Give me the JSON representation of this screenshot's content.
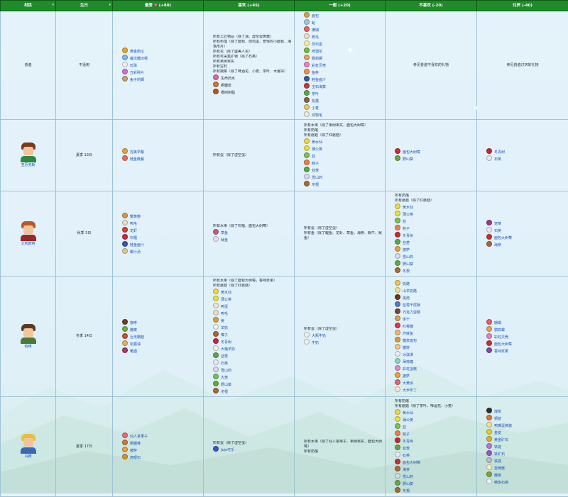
{
  "headers": {
    "villager": "村民",
    "birthday": "生日",
    "love": "最爱",
    "love_pts": "(+80)",
    "like": "喜欢 (+45)",
    "neutral": "一般 (+20)",
    "dislike": "不喜欢 (-20)",
    "hate": "讨厌 (-40)"
  },
  "colors": {
    "header_bg": "#1f8b2a",
    "link": "#1a55b8",
    "border": "#9ec3d8"
  },
  "rows": [
    {
      "name": "普遍",
      "birthday": "不适用",
      "love": [
        {
          "t": "黄金南瓜",
          "c": "#e8a626"
        },
        {
          "t": "魔法糖冰棍",
          "c": "#7fb8e8"
        },
        {
          "t": "珍珠",
          "c": "#f2f2f2"
        },
        {
          "t": "五彩碎片",
          "c": "#d86ad8"
        },
        {
          "t": "兔子的脚",
          "c": "#c8a070"
        }
      ],
      "like": [
        "所有工匠物品（除了油、虚空蛋黄酱）",
        "所有料理（除了面包、煎鸡蛋、奇怪的小面包、海洛形片）",
        "所有花（除了虞美人花）",
        "所有可采集矿物（除了石英）",
        "所有果树果实",
        "所有宝石",
        "所有蔬菜（除了啤酒花、小麦、茶叶、木薯块）",
        "生命药水",
        "枫糖浆",
        "橡树树脂"
      ],
      "like_icons": [
        "#d86aa0",
        "#c87830",
        "#a85a28"
      ],
      "neutral": [
        {
          "t": "面包",
          "c": "#d8a050"
        },
        {
          "t": "蛤",
          "c": "#9cc8e0"
        },
        {
          "t": "珊瑚",
          "c": "#e86060"
        },
        {
          "t": "鸭毛",
          "c": "#e8e0c8"
        },
        {
          "t": "煎鸡蛋",
          "c": "#f8f0a0"
        },
        {
          "t": "啤酒花",
          "c": "#78b840"
        },
        {
          "t": "鹦鹉螺",
          "c": "#e8a060"
        },
        {
          "t": "彩虹贝壳",
          "c": "#e880c0"
        },
        {
          "t": "鱼籽",
          "c": "#f09040"
        },
        {
          "t": "鲑鱼面汁",
          "c": "#3858a8"
        },
        {
          "t": "宝石海葵",
          "c": "#c83838"
        },
        {
          "t": "茶叶",
          "c": "#58a848"
        },
        {
          "t": "松露",
          "c": "#8a6040"
        },
        {
          "t": "小麦",
          "c": "#e8c860"
        },
        {
          "t": "动物毛",
          "c": "#f0e8d8"
        }
      ],
      "dislike_text": "参见普遍不喜欢的礼物",
      "hate_text": "参见普遍讨厌的礼物"
    },
    {
      "name": "亚历克斯",
      "birthday": "夏季 13日",
      "portrait": {
        "hair": "#7a3a18",
        "body": "#2c8a44"
      },
      "love": [
        {
          "t": "完美早餐",
          "c": "#e8a040"
        },
        {
          "t": "鲑鱼晚餐",
          "c": "#e87050"
        }
      ],
      "like": [
        "所有蛋（除了虚空蛋）"
      ],
      "neutral_text": [
        "所有水果（除了果树果实，面包大树莓）",
        "所有奶酪",
        "所有蘑菇（除了红蘑菇）"
      ],
      "neutral": [
        {
          "t": "黄水仙",
          "c": "#f0d840"
        },
        {
          "t": "蒲公英",
          "c": "#e8e040"
        },
        {
          "t": "韭",
          "c": "#78c060"
        },
        {
          "t": "鲑子",
          "c": "#f08040"
        },
        {
          "t": "韭葱",
          "c": "#58a848"
        },
        {
          "t": "雪山药",
          "c": "#d8d8e8"
        },
        {
          "t": "冬根",
          "c": "#a86838"
        }
      ],
      "dislike": [
        {
          "t": "面包大树莓",
          "c": "#c83030"
        },
        {
          "t": "野山葵",
          "c": "#68a840"
        }
      ],
      "hate": [
        {
          "t": "冬青树",
          "c": "#c82838"
        },
        {
          "t": "石英",
          "c": "#e8e8f8"
        }
      ]
    },
    {
      "name": "艾利欧特",
      "birthday": "秋季 5日",
      "portrait": {
        "hair": "#b85a28",
        "body": "#9a2828"
      },
      "love": [
        {
          "t": "蟹黄糕",
          "c": "#d89848"
        },
        {
          "t": "鸭毛",
          "c": "#e8e0c8"
        },
        {
          "t": "龙虾",
          "c": "#d84030"
        },
        {
          "t": "石榴",
          "c": "#c82848"
        },
        {
          "t": "鲑鱼面汁",
          "c": "#3858a8"
        },
        {
          "t": "椰汁汤",
          "c": "#e0c890"
        }
      ],
      "like_text": [
        "所有水果（除了石榴，面包大树莓）"
      ],
      "like": [
        {
          "t": "章鱼",
          "c": "#c06080"
        },
        {
          "t": "鱿鱼",
          "c": "#e8e0f0"
        }
      ],
      "neutral_text": [
        "所有蛋（除了虚空蛋）",
        "所有鱼（除了鲤鱼、龙虾、章鱼、海参、蜗牛、鱿鱼）"
      ],
      "dislike_text": [
        "所有奶酪",
        "所有蘑菇（除了红蘑菇）"
      ],
      "dislike": [
        {
          "t": "黄水仙",
          "c": "#f0d840"
        },
        {
          "t": "蒲公英",
          "c": "#e8e040"
        },
        {
          "t": "韭",
          "c": "#78c060"
        },
        {
          "t": "鲑子",
          "c": "#f08040"
        },
        {
          "t": "冬青树",
          "c": "#c82838"
        },
        {
          "t": "韭葱",
          "c": "#58a848"
        },
        {
          "t": "披萨",
          "c": "#e8a040"
        },
        {
          "t": "雪山药",
          "c": "#d8d8e8"
        },
        {
          "t": "野山葵",
          "c": "#68a840"
        },
        {
          "t": "冬根",
          "c": "#a86838"
        }
      ],
      "hate": [
        {
          "t": "宠菜",
          "c": "#9a3a8a"
        },
        {
          "t": "石英",
          "c": "#e8e8f8"
        },
        {
          "t": "面包大树莓",
          "c": "#c83030"
        },
        {
          "t": "海参",
          "c": "#a86838"
        }
      ]
    },
    {
      "name": "哈维",
      "birthday": "冬季 14日",
      "portrait": {
        "hair": "#5a3a20",
        "body": "#4a7a3a"
      },
      "love": [
        {
          "t": "咖啡",
          "c": "#6a4028"
        },
        {
          "t": "腌菜",
          "c": "#78a840"
        },
        {
          "t": "巨无霸菇",
          "c": "#c85030"
        },
        {
          "t": "松露油",
          "c": "#d8b860"
        },
        {
          "t": "葡酒",
          "c": "#a83868"
        }
      ],
      "like_text": [
        "所有水果（除了面包大树莓，香味浆果）",
        "所有蘑菇（除了红蘑菇）"
      ],
      "like": [
        {
          "t": "黄水仙",
          "c": "#f0d840"
        },
        {
          "t": "蒲公英",
          "c": "#e8e040"
        },
        {
          "t": "鸭蛋",
          "c": "#e8e8d8"
        },
        {
          "t": "鸭毛",
          "c": "#e8e0c8"
        },
        {
          "t": "姜",
          "c": "#d8a040"
        },
        {
          "t": "羊奶",
          "c": "#f0f0f0"
        },
        {
          "t": "榛子",
          "c": "#a86838"
        },
        {
          "t": "冬青树",
          "c": "#c82838"
        },
        {
          "t": "大桶羊奶",
          "c": "#f0f0f0"
        },
        {
          "t": "韭葱",
          "c": "#58a848"
        },
        {
          "t": "石英",
          "c": "#e8e8f8"
        },
        {
          "t": "雪山药",
          "c": "#d8d8e8"
        },
        {
          "t": "大葱",
          "c": "#78c060"
        },
        {
          "t": "野山葵",
          "c": "#68a840"
        },
        {
          "t": "冬根",
          "c": "#a86838"
        }
      ],
      "neutral_text": [
        "所有蛋（除了虚空蛋）"
      ],
      "neutral": [
        {
          "t": "大瓶牛奶",
          "c": "#f0f0f0"
        },
        {
          "t": "牛奶",
          "c": "#f0f0f0"
        }
      ],
      "dislike": [
        {
          "t": "奶酪",
          "c": "#f0c850"
        },
        {
          "t": "山羊奶酪",
          "c": "#f0e0a0"
        },
        {
          "t": "黑焙",
          "c": "#683818"
        },
        {
          "t": "蓝莓千层酥",
          "c": "#5878c8"
        },
        {
          "t": "巧克力蛋糕",
          "c": "#7a4828"
        },
        {
          "t": "饼干",
          "c": "#d8a050"
        },
        {
          "t": "红莓糖",
          "c": "#d83858"
        },
        {
          "t": "炸鱿鱼",
          "c": "#e8b868"
        },
        {
          "t": "糖浆面包",
          "c": "#d89848"
        },
        {
          "t": "糖饼",
          "c": "#e8c888"
        },
        {
          "t": "冰淇淋",
          "c": "#f0e8f0"
        },
        {
          "t": "薄荷糖",
          "c": "#88d8b8"
        },
        {
          "t": "彩虹蛋糕",
          "c": "#e888c8"
        },
        {
          "t": "披萨",
          "c": "#e8a040"
        },
        {
          "t": "大黄派",
          "c": "#d86878"
        },
        {
          "t": "大米布丁",
          "c": "#f0e8d0"
        }
      ],
      "hate": [
        {
          "t": "珊瑚",
          "c": "#e86060"
        },
        {
          "t": "鹦鹉螺",
          "c": "#e8a060"
        },
        {
          "t": "彩虹贝壳",
          "c": "#e880c0"
        },
        {
          "t": "面包大树莓",
          "c": "#c83030"
        },
        {
          "t": "香味浆果",
          "c": "#8848a8"
        }
      ]
    },
    {
      "name": "山姆",
      "birthday": "夏季 17日",
      "portrait": {
        "hair": "#e8c040",
        "body": "#3868b8"
      },
      "love": [
        {
          "t": "仙人掌果子",
          "c": "#e86878"
        },
        {
          "t": "枫糖棒",
          "c": "#c87838"
        },
        {
          "t": "披萨",
          "c": "#e8a040"
        },
        {
          "t": "虎眼石",
          "c": "#d89030"
        }
      ],
      "like_text": [
        "所有蛋（除了虚空蛋）"
      ],
      "like": [
        {
          "t": "Joja可乐",
          "c": "#3858c8"
        }
      ],
      "neutral_text": [
        "所有水果（除了仙人掌果子、果树果实、面包大树莓）",
        "所有奶酪"
      ],
      "dislike_text": [
        "所有奶酪",
        "所有蘑菇（除了茶叶、啤酒花、小麦）"
      ],
      "dislike": [
        {
          "t": "黄水仙",
          "c": "#f0d840"
        },
        {
          "t": "蒲公英",
          "c": "#e8e040"
        },
        {
          "t": "韭",
          "c": "#78c060"
        },
        {
          "t": "鲑子",
          "c": "#f08040"
        },
        {
          "t": "冬青树",
          "c": "#c82838"
        },
        {
          "t": "韭葱",
          "c": "#58a848"
        },
        {
          "t": "石英",
          "c": "#e8e8f8"
        },
        {
          "t": "面包大树莓",
          "c": "#c83030"
        },
        {
          "t": "海参",
          "c": "#a86838"
        },
        {
          "t": "雪山药",
          "c": "#d8d8e8"
        },
        {
          "t": "野山葵",
          "c": "#68a840"
        },
        {
          "t": "冬根",
          "c": "#a86838"
        }
      ],
      "hate": [
        {
          "t": "煤炭",
          "c": "#303030"
        },
        {
          "t": "铜锭",
          "c": "#d87838"
        },
        {
          "t": "鸭嘴蛋黄酱",
          "c": "#f0e0a0"
        },
        {
          "t": "金锭",
          "c": "#f0c830"
        },
        {
          "t": "黄金矿石",
          "c": "#d8b040"
        },
        {
          "t": "铱锭",
          "c": "#b878d8"
        },
        {
          "t": "铱矿石",
          "c": "#9858c8"
        },
        {
          "t": "铁锭",
          "c": "#b8c0c8"
        },
        {
          "t": "蛋黄酱",
          "c": "#f8f0c0"
        },
        {
          "t": "腌菜",
          "c": "#78a840"
        },
        {
          "t": "精炼石英",
          "c": "#f0f0f8"
        }
      ]
    }
  ]
}
